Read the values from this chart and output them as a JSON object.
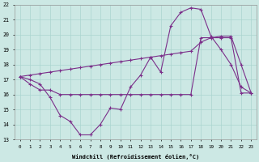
{
  "xlabel": "Windchill (Refroidissement éolien,°C)",
  "hours": [
    0,
    1,
    2,
    3,
    4,
    5,
    6,
    7,
    8,
    9,
    10,
    11,
    12,
    13,
    14,
    15,
    16,
    17,
    18,
    19,
    20,
    21,
    22,
    23
  ],
  "windchill": [
    17.2,
    17.0,
    16.7,
    15.8,
    14.6,
    14.2,
    13.3,
    13.3,
    14.0,
    15.1,
    15.0,
    16.5,
    17.3,
    18.5,
    17.5,
    20.6,
    21.5,
    21.8,
    21.7,
    19.9,
    19.0,
    18.0,
    16.5,
    16.1
  ],
  "temperature": [
    17.2,
    16.7,
    16.3,
    16.3,
    16.0,
    16.0,
    16.0,
    16.0,
    16.0,
    16.0,
    16.0,
    16.0,
    16.0,
    16.0,
    16.0,
    16.0,
    16.0,
    16.0,
    19.8,
    19.8,
    19.8,
    19.8,
    16.1,
    16.1
  ],
  "linear_temp": [
    17.2,
    17.3,
    17.4,
    17.5,
    17.6,
    17.7,
    17.8,
    17.9,
    18.0,
    18.1,
    18.2,
    18.3,
    18.4,
    18.5,
    18.6,
    18.7,
    18.8,
    18.9,
    19.5,
    19.8,
    19.9,
    19.9,
    18.0,
    16.1
  ],
  "line_color": "#7b2f8a",
  "bg_color": "#cce8e4",
  "grid_color": "#aad4cf",
  "ylim_min": 13,
  "ylim_max": 22,
  "yticks": [
    13,
    14,
    15,
    16,
    17,
    18,
    19,
    20,
    21,
    22
  ]
}
